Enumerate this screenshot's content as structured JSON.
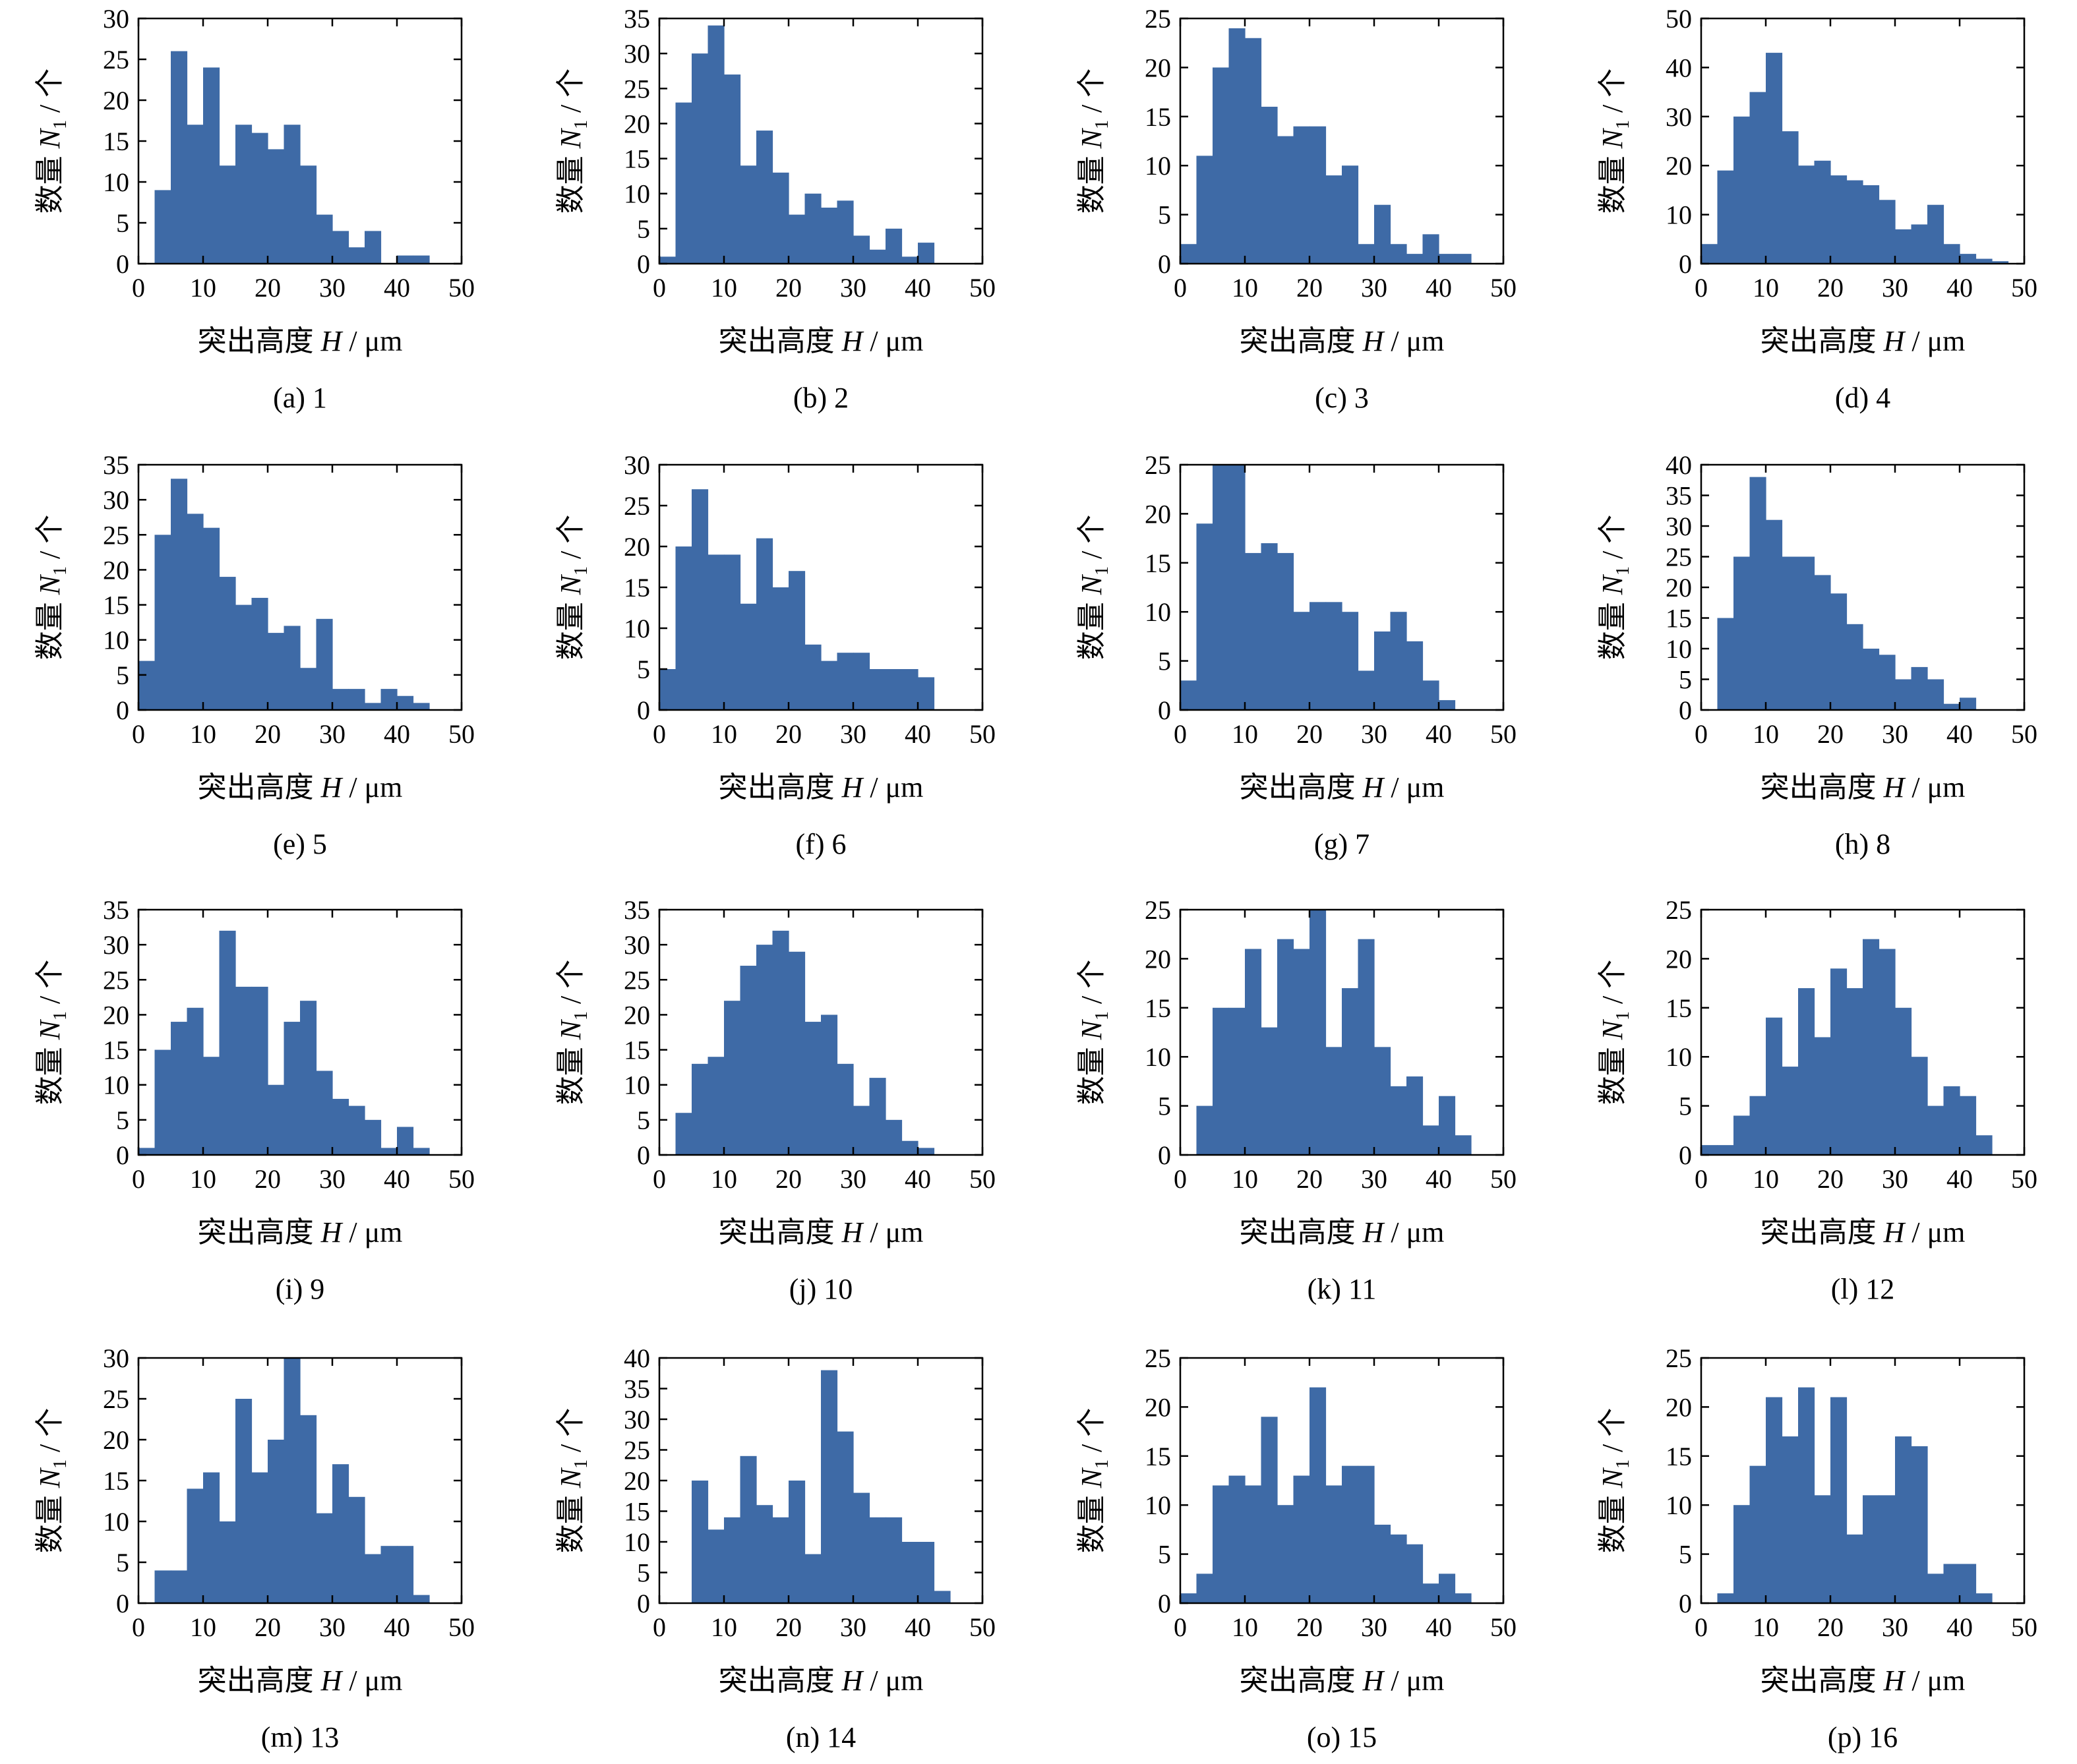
{
  "figure": {
    "bar_color": "#3E6AA6",
    "axis_color": "#000000",
    "ylabel_text": "数量",
    "ylabel_sym": "N",
    "ylabel_sub": "1",
    "ylabel_unit": "/ 个",
    "xlabel_text": "突出高度",
    "xlabel_sym": "H",
    "xlabel_unit": "/ μm"
  },
  "chart_data": [
    {
      "type": "bar",
      "caption": "(a) 1",
      "bin_edges_start": 0,
      "bin_width": 2.5,
      "xlim": [
        0,
        50
      ],
      "ylim": [
        0,
        30
      ],
      "xticks": [
        0,
        10,
        20,
        30,
        40,
        50
      ],
      "yticks": [
        0,
        5,
        10,
        15,
        20,
        25,
        30
      ],
      "xlabel": "突出高度 H / μm",
      "ylabel": "数量 N1 / 个",
      "values": [
        0,
        9,
        26,
        17,
        24,
        12,
        17,
        16,
        14,
        17,
        12,
        6,
        4,
        2,
        4,
        0,
        1,
        1,
        0,
        0
      ]
    },
    {
      "type": "bar",
      "caption": "(b) 2",
      "bin_edges_start": 0,
      "bin_width": 2.5,
      "xlim": [
        0,
        50
      ],
      "ylim": [
        0,
        35
      ],
      "xticks": [
        0,
        10,
        20,
        30,
        40,
        50
      ],
      "yticks": [
        0,
        5,
        10,
        15,
        20,
        25,
        30,
        35
      ],
      "xlabel": "突出高度 H / μm",
      "ylabel": "数量 N1 / 个",
      "values": [
        1,
        23,
        30,
        34,
        27,
        14,
        19,
        13,
        7,
        10,
        8,
        9,
        4,
        2,
        5,
        1,
        3,
        0,
        0,
        0
      ]
    },
    {
      "type": "bar",
      "caption": "(c) 3",
      "bin_edges_start": 0,
      "bin_width": 2.5,
      "xlim": [
        0,
        50
      ],
      "ylim": [
        0,
        25
      ],
      "xticks": [
        0,
        10,
        20,
        30,
        40,
        50
      ],
      "yticks": [
        0,
        5,
        10,
        15,
        20,
        25
      ],
      "xlabel": "突出高度 H / μm",
      "ylabel": "数量 N1 / 个",
      "values": [
        2,
        11,
        20,
        24,
        23,
        16,
        13,
        14,
        14,
        9,
        10,
        2,
        6,
        2,
        1,
        3,
        1,
        1,
        0,
        0
      ]
    },
    {
      "type": "bar",
      "caption": "(d) 4",
      "bin_edges_start": 0,
      "bin_width": 2.5,
      "xlim": [
        0,
        50
      ],
      "ylim": [
        0,
        50
      ],
      "xticks": [
        0,
        10,
        20,
        30,
        40,
        50
      ],
      "yticks": [
        0,
        10,
        20,
        30,
        40,
        50
      ],
      "xlabel": "突出高度 H / μm",
      "ylabel": "数量 N1 / 个",
      "values": [
        4,
        19,
        30,
        35,
        43,
        27,
        20,
        21,
        18,
        17,
        16,
        13,
        7,
        8,
        12,
        4,
        2,
        1,
        0.5,
        0
      ]
    },
    {
      "type": "bar",
      "caption": "(e) 5",
      "bin_edges_start": 0,
      "bin_width": 2.5,
      "xlim": [
        0,
        50
      ],
      "ylim": [
        0,
        35
      ],
      "xticks": [
        0,
        10,
        20,
        30,
        40,
        50
      ],
      "yticks": [
        0,
        5,
        10,
        15,
        20,
        25,
        30,
        35
      ],
      "xlabel": "突出高度 H / μm",
      "ylabel": "数量 N1 / 个",
      "values": [
        7,
        25,
        33,
        28,
        26,
        19,
        15,
        16,
        11,
        12,
        6,
        13,
        3,
        3,
        1,
        3,
        2,
        1,
        0,
        0
      ]
    },
    {
      "type": "bar",
      "caption": "(f) 6",
      "bin_edges_start": 0,
      "bin_width": 2.5,
      "xlim": [
        0,
        50
      ],
      "ylim": [
        0,
        30
      ],
      "xticks": [
        0,
        10,
        20,
        30,
        40,
        50
      ],
      "yticks": [
        0,
        5,
        10,
        15,
        20,
        25,
        30
      ],
      "xlabel": "突出高度 H / μm",
      "ylabel": "数量 N1 / 个",
      "values": [
        5,
        20,
        27,
        19,
        19,
        13,
        21,
        15,
        17,
        8,
        6,
        7,
        7,
        5,
        5,
        5,
        4,
        0,
        0,
        0
      ]
    },
    {
      "type": "bar",
      "caption": "(g) 7",
      "bin_edges_start": 0,
      "bin_width": 2.5,
      "xlim": [
        0,
        50
      ],
      "ylim": [
        0,
        25
      ],
      "xticks": [
        0,
        10,
        20,
        30,
        40,
        50
      ],
      "yticks": [
        0,
        5,
        10,
        15,
        20,
        25
      ],
      "xlabel": "突出高度 H / μm",
      "ylabel": "数量 N1 / 个",
      "values": [
        3,
        19,
        25,
        25,
        16,
        17,
        16,
        10,
        11,
        11,
        10,
        4,
        8,
        10,
        7,
        3,
        1,
        0,
        0,
        0
      ]
    },
    {
      "type": "bar",
      "caption": "(h) 8",
      "bin_edges_start": 0,
      "bin_width": 2.5,
      "xlim": [
        0,
        50
      ],
      "ylim": [
        0,
        40
      ],
      "xticks": [
        0,
        10,
        20,
        30,
        40,
        50
      ],
      "yticks": [
        0,
        5,
        10,
        15,
        20,
        25,
        30,
        35,
        40
      ],
      "xlabel": "突出高度 H / μm",
      "ylabel": "数量 N1 / 个",
      "values": [
        0,
        15,
        25,
        38,
        31,
        25,
        25,
        22,
        19,
        14,
        10,
        9,
        5,
        7,
        5,
        1,
        2,
        0,
        0,
        0
      ]
    },
    {
      "type": "bar",
      "caption": "(i) 9",
      "bin_edges_start": 0,
      "bin_width": 2.5,
      "xlim": [
        0,
        50
      ],
      "ylim": [
        0,
        35
      ],
      "xticks": [
        0,
        10,
        20,
        30,
        40,
        50
      ],
      "yticks": [
        0,
        5,
        10,
        15,
        20,
        25,
        30,
        35
      ],
      "xlabel": "突出高度 H / μm",
      "ylabel": "数量 N1 / 个",
      "values": [
        1,
        15,
        19,
        21,
        14,
        32,
        24,
        24,
        10,
        19,
        22,
        12,
        8,
        7,
        5,
        1,
        4,
        1,
        0,
        0
      ]
    },
    {
      "type": "bar",
      "caption": "(j) 10",
      "bin_edges_start": 0,
      "bin_width": 2.5,
      "xlim": [
        0,
        50
      ],
      "ylim": [
        0,
        35
      ],
      "xticks": [
        0,
        10,
        20,
        30,
        40,
        50
      ],
      "yticks": [
        0,
        5,
        10,
        15,
        20,
        25,
        30,
        35
      ],
      "xlabel": "突出高度 H / μm",
      "ylabel": "数量 N1 / 个",
      "values": [
        0,
        6,
        13,
        14,
        22,
        27,
        30,
        32,
        29,
        19,
        20,
        13,
        7,
        11,
        5,
        2,
        1,
        0,
        0,
        0
      ]
    },
    {
      "type": "bar",
      "caption": "(k) 11",
      "bin_edges_start": 0,
      "bin_width": 2.5,
      "xlim": [
        0,
        50
      ],
      "ylim": [
        0,
        25
      ],
      "xticks": [
        0,
        10,
        20,
        30,
        40,
        50
      ],
      "yticks": [
        0,
        5,
        10,
        15,
        20,
        25
      ],
      "xlabel": "突出高度 H / μm",
      "ylabel": "数量 N1 / 个",
      "values": [
        0,
        5,
        15,
        15,
        21,
        13,
        22,
        21,
        25,
        11,
        17,
        22,
        11,
        7,
        8,
        3,
        6,
        2,
        0,
        0
      ]
    },
    {
      "type": "bar",
      "caption": "(l) 12",
      "bin_edges_start": 0,
      "bin_width": 2.5,
      "xlim": [
        0,
        50
      ],
      "ylim": [
        0,
        25
      ],
      "xticks": [
        0,
        10,
        20,
        30,
        40,
        50
      ],
      "yticks": [
        0,
        5,
        10,
        15,
        20,
        25
      ],
      "xlabel": "突出高度 H / μm",
      "ylabel": "数量 N1 / 个",
      "values": [
        1,
        1,
        4,
        6,
        14,
        9,
        17,
        12,
        19,
        17,
        22,
        21,
        15,
        10,
        5,
        7,
        6,
        2,
        0,
        0
      ]
    },
    {
      "type": "bar",
      "caption": "(m) 13",
      "bin_edges_start": 0,
      "bin_width": 2.5,
      "xlim": [
        0,
        50
      ],
      "ylim": [
        0,
        30
      ],
      "xticks": [
        0,
        10,
        20,
        30,
        40,
        50
      ],
      "yticks": [
        0,
        5,
        10,
        15,
        20,
        25,
        30
      ],
      "xlabel": "突出高度 H / μm",
      "ylabel": "数量 N1 / 个",
      "values": [
        0,
        4,
        4,
        14,
        16,
        10,
        25,
        16,
        20,
        30,
        23,
        11,
        17,
        13,
        6,
        7,
        7,
        1,
        0,
        0
      ]
    },
    {
      "type": "bar",
      "caption": "(n) 14",
      "bin_edges_start": 0,
      "bin_width": 2.5,
      "xlim": [
        0,
        50
      ],
      "ylim": [
        0,
        40
      ],
      "xticks": [
        0,
        10,
        20,
        30,
        40,
        50
      ],
      "yticks": [
        0,
        5,
        10,
        15,
        20,
        25,
        30,
        35,
        40
      ],
      "xlabel": "突出高度 H / μm",
      "ylabel": "数量 N1 / 个",
      "values": [
        0,
        0,
        20,
        12,
        14,
        24,
        16,
        14,
        20,
        8,
        38,
        28,
        18,
        14,
        14,
        10,
        10,
        2,
        0,
        0
      ]
    },
    {
      "type": "bar",
      "caption": "(o) 15",
      "bin_edges_start": 0,
      "bin_width": 2.5,
      "xlim": [
        0,
        50
      ],
      "ylim": [
        0,
        25
      ],
      "xticks": [
        0,
        10,
        20,
        30,
        40,
        50
      ],
      "yticks": [
        0,
        5,
        10,
        15,
        20,
        25
      ],
      "xlabel": "突出高度 H / μm",
      "ylabel": "数量 N1 / 个",
      "values": [
        1,
        3,
        12,
        13,
        12,
        19,
        10,
        13,
        22,
        12,
        14,
        14,
        8,
        7,
        6,
        2,
        3,
        1,
        0,
        0
      ]
    },
    {
      "type": "bar",
      "caption": "(p) 16",
      "bin_edges_start": 0,
      "bin_width": 2.5,
      "xlim": [
        0,
        50
      ],
      "ylim": [
        0,
        25
      ],
      "xticks": [
        0,
        10,
        20,
        30,
        40,
        50
      ],
      "yticks": [
        0,
        5,
        10,
        15,
        20,
        25
      ],
      "xlabel": "突出高度 H / μm",
      "ylabel": "数量 N1 / 个",
      "values": [
        0,
        1,
        10,
        14,
        21,
        17,
        22,
        11,
        21,
        7,
        11,
        11,
        17,
        16,
        3,
        4,
        4,
        1,
        0,
        0
      ]
    }
  ]
}
